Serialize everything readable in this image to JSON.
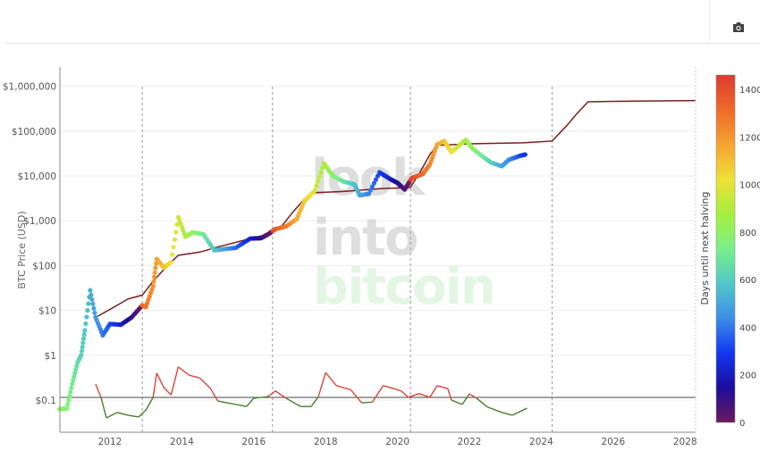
{
  "toolbar": {
    "camera_icon": "camera-icon"
  },
  "watermark": {
    "line1": "look",
    "line2": "into",
    "line3": "bitcoin"
  },
  "chart_data": {
    "type": "scatter",
    "ylabel": "BTC Price (USD)",
    "y_scale": "log",
    "ylim": [
      0.03,
      2000000
    ],
    "xlim": [
      2010.6,
      2028.3
    ],
    "x_ticks": [
      "2012",
      "2014",
      "2016",
      "2018",
      "2020",
      "2022",
      "2024",
      "2026",
      "2028"
    ],
    "y_ticks": [
      "$0.1",
      "$1",
      "$10",
      "$100",
      "$1,000",
      "$10,000",
      "$100,000",
      "$1,000,000"
    ],
    "grid": true,
    "halvings": [
      2012.9,
      2016.52,
      2020.36,
      2024.3
    ],
    "colorbar": {
      "title": "Days until next halving",
      "range": [
        0,
        1460
      ],
      "ticks": [
        "0",
        "200",
        "400",
        "600",
        "800",
        "1000",
        "1200",
        "1400"
      ],
      "colors": [
        "#6a1b5c",
        "#1c0c9c",
        "#1238f0",
        "#3d8ee8",
        "#52c7c8",
        "#79f08a",
        "#a6ef3e",
        "#efe135",
        "#f5a332",
        "#ee6a2a",
        "#dc3a2e"
      ]
    },
    "price": {
      "x": [
        2010.6,
        2010.8,
        2010.95,
        2011.1,
        2011.2,
        2011.3,
        2011.45,
        2011.6,
        2011.8,
        2012.0,
        2012.3,
        2012.6,
        2012.9,
        2013.0,
        2013.2,
        2013.3,
        2013.5,
        2013.7,
        2013.9,
        2014.1,
        2014.3,
        2014.6,
        2014.9,
        2015.1,
        2015.5,
        2015.9,
        2016.2,
        2016.4,
        2016.6,
        2016.9,
        2017.2,
        2017.4,
        2017.7,
        2017.95,
        2018.2,
        2018.5,
        2018.8,
        2018.95,
        2019.2,
        2019.5,
        2019.8,
        2020.0,
        2020.2,
        2020.4,
        2020.7,
        2020.9,
        2021.1,
        2021.3,
        2021.5,
        2021.8,
        2021.9,
        2022.1,
        2022.4,
        2022.6,
        2022.9,
        2023.1,
        2023.4,
        2023.55
      ],
      "y": [
        0.063,
        0.065,
        0.23,
        0.7,
        1,
        3.6,
        28,
        7,
        2.8,
        5,
        4.8,
        7,
        13,
        12,
        35,
        140,
        90,
        120,
        1200,
        440,
        550,
        500,
        220,
        230,
        250,
        400,
        410,
        500,
        650,
        750,
        1100,
        2700,
        4700,
        19000,
        10000,
        7500,
        6500,
        3700,
        4000,
        12000,
        8500,
        7000,
        5000,
        9000,
        11000,
        18000,
        50000,
        60000,
        34000,
        55000,
        63000,
        40000,
        26000,
        20000,
        16500,
        23000,
        28000,
        30000
      ]
    },
    "model": {
      "color": "#7b1c1c",
      "x": [
        2011.6,
        2012.2,
        2012.5,
        2012.9,
        2013.2,
        2013.6,
        2013.9,
        2014.5,
        2015.0,
        2015.5,
        2016.0,
        2016.5,
        2016.8,
        2017.1,
        2017.4,
        2017.6,
        2018.5,
        2019.5,
        2020.35,
        2020.6,
        2020.9,
        2021.1,
        2022.0,
        2023.5,
        2024.3,
        2024.7,
        2025.0,
        2025.3,
        2026.0,
        2028.3
      ],
      "y": [
        7,
        13,
        18,
        22,
        45,
        100,
        170,
        200,
        260,
        330,
        420,
        520,
        800,
        1600,
        3000,
        4200,
        4500,
        5200,
        5500,
        11000,
        30000,
        48000,
        52000,
        55000,
        60000,
        130000,
        250000,
        450000,
        460000,
        480000
      ]
    },
    "oscillator": {
      "threshold": 0.115,
      "above_color": "#d9453a",
      "below_color": "#4a7d2c",
      "x": [
        2011.6,
        2011.75,
        2011.9,
        2012.2,
        2012.5,
        2012.8,
        2013.0,
        2013.2,
        2013.3,
        2013.5,
        2013.7,
        2013.9,
        2014.2,
        2014.5,
        2014.8,
        2015.0,
        2015.5,
        2015.8,
        2016.0,
        2016.4,
        2016.6,
        2016.9,
        2017.3,
        2017.6,
        2017.8,
        2018.0,
        2018.3,
        2018.7,
        2019.0,
        2019.3,
        2019.6,
        2019.9,
        2020.1,
        2020.3,
        2020.6,
        2020.9,
        2021.1,
        2021.4,
        2021.5,
        2021.8,
        2022.0,
        2022.2,
        2022.5,
        2022.9,
        2023.2,
        2023.6
      ],
      "y": [
        0.228,
        0.115,
        0.04,
        0.053,
        0.046,
        0.042,
        0.06,
        0.115,
        0.4,
        0.19,
        0.13,
        0.55,
        0.36,
        0.31,
        0.18,
        0.095,
        0.08,
        0.072,
        0.11,
        0.12,
        0.16,
        0.11,
        0.072,
        0.072,
        0.12,
        0.41,
        0.21,
        0.17,
        0.087,
        0.09,
        0.21,
        0.18,
        0.16,
        0.115,
        0.14,
        0.115,
        0.21,
        0.18,
        0.1,
        0.08,
        0.138,
        0.11,
        0.07,
        0.053,
        0.046,
        0.066
      ]
    }
  }
}
